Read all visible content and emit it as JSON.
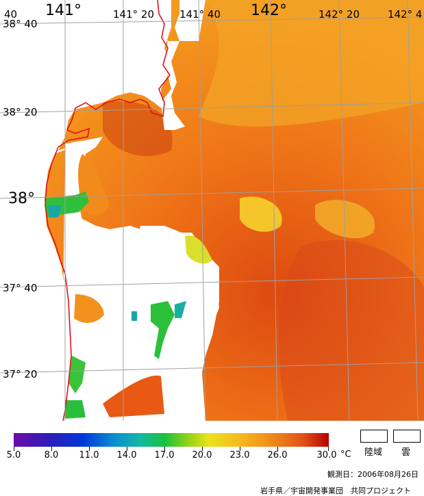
{
  "map": {
    "lon_labels": [
      "141°",
      "141° 20",
      "141° 40",
      "142°",
      "142° 20",
      "142° 4"
    ],
    "lat_labels": [
      "38° 40",
      "38° 20",
      "38°",
      "37° 40",
      "37° 20"
    ],
    "corner_label": "40"
  },
  "legend": {
    "ticks": [
      "5.0",
      "8.0",
      "11.0",
      "14.0",
      "17.0",
      "20.0",
      "23.0",
      "26.0",
      "30.0"
    ],
    "unit": "°C",
    "land_label": "陸域",
    "cloud_label": "雲",
    "colors": {
      "violet": "#6a0dab",
      "blue": "#0038d8",
      "cyan": "#14b8a6",
      "green": "#18c23a",
      "yellow": "#e8e41a",
      "orange": "#f08a1a",
      "red": "#b80000"
    }
  },
  "footer": {
    "observation_date": "観測日：2006年08月26日",
    "credit": "岩手県／宇宙開発事業団　共同プロジェクト"
  }
}
